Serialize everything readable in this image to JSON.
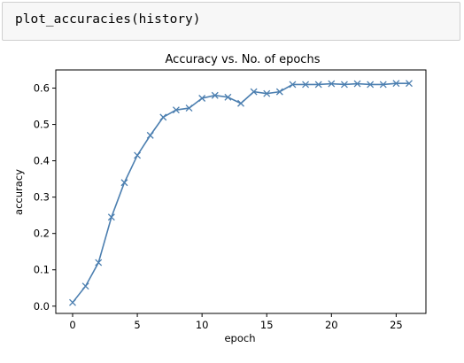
{
  "cell": {
    "code": "plot_accuracies(history)"
  },
  "chart_data": {
    "type": "line",
    "title": "Accuracy vs. No. of epochs",
    "xlabel": "epoch",
    "ylabel": "accuracy",
    "xlim": [
      -1.3,
      27.3
    ],
    "ylim": [
      -0.02,
      0.65
    ],
    "xticks": [
      0,
      5,
      10,
      15,
      20,
      25
    ],
    "xtick_labels": [
      "0",
      "5",
      "10",
      "15",
      "20",
      "25"
    ],
    "yticks": [
      0.0,
      0.1,
      0.2,
      0.3,
      0.4,
      0.5,
      0.6
    ],
    "ytick_labels": [
      "0.0",
      "0.1",
      "0.2",
      "0.3",
      "0.4",
      "0.5",
      "0.6"
    ],
    "grid": false,
    "marker": "x",
    "color": "#4c7fb0",
    "x": [
      0,
      1,
      2,
      3,
      4,
      5,
      6,
      7,
      8,
      9,
      10,
      11,
      12,
      13,
      14,
      15,
      16,
      17,
      18,
      19,
      20,
      21,
      22,
      23,
      24,
      25,
      26
    ],
    "values": [
      0.01,
      0.055,
      0.12,
      0.245,
      0.34,
      0.415,
      0.47,
      0.52,
      0.54,
      0.545,
      0.572,
      0.58,
      0.575,
      0.558,
      0.59,
      0.585,
      0.59,
      0.61,
      0.61,
      0.61,
      0.612,
      0.61,
      0.612,
      0.61,
      0.61,
      0.613,
      0.613
    ]
  }
}
